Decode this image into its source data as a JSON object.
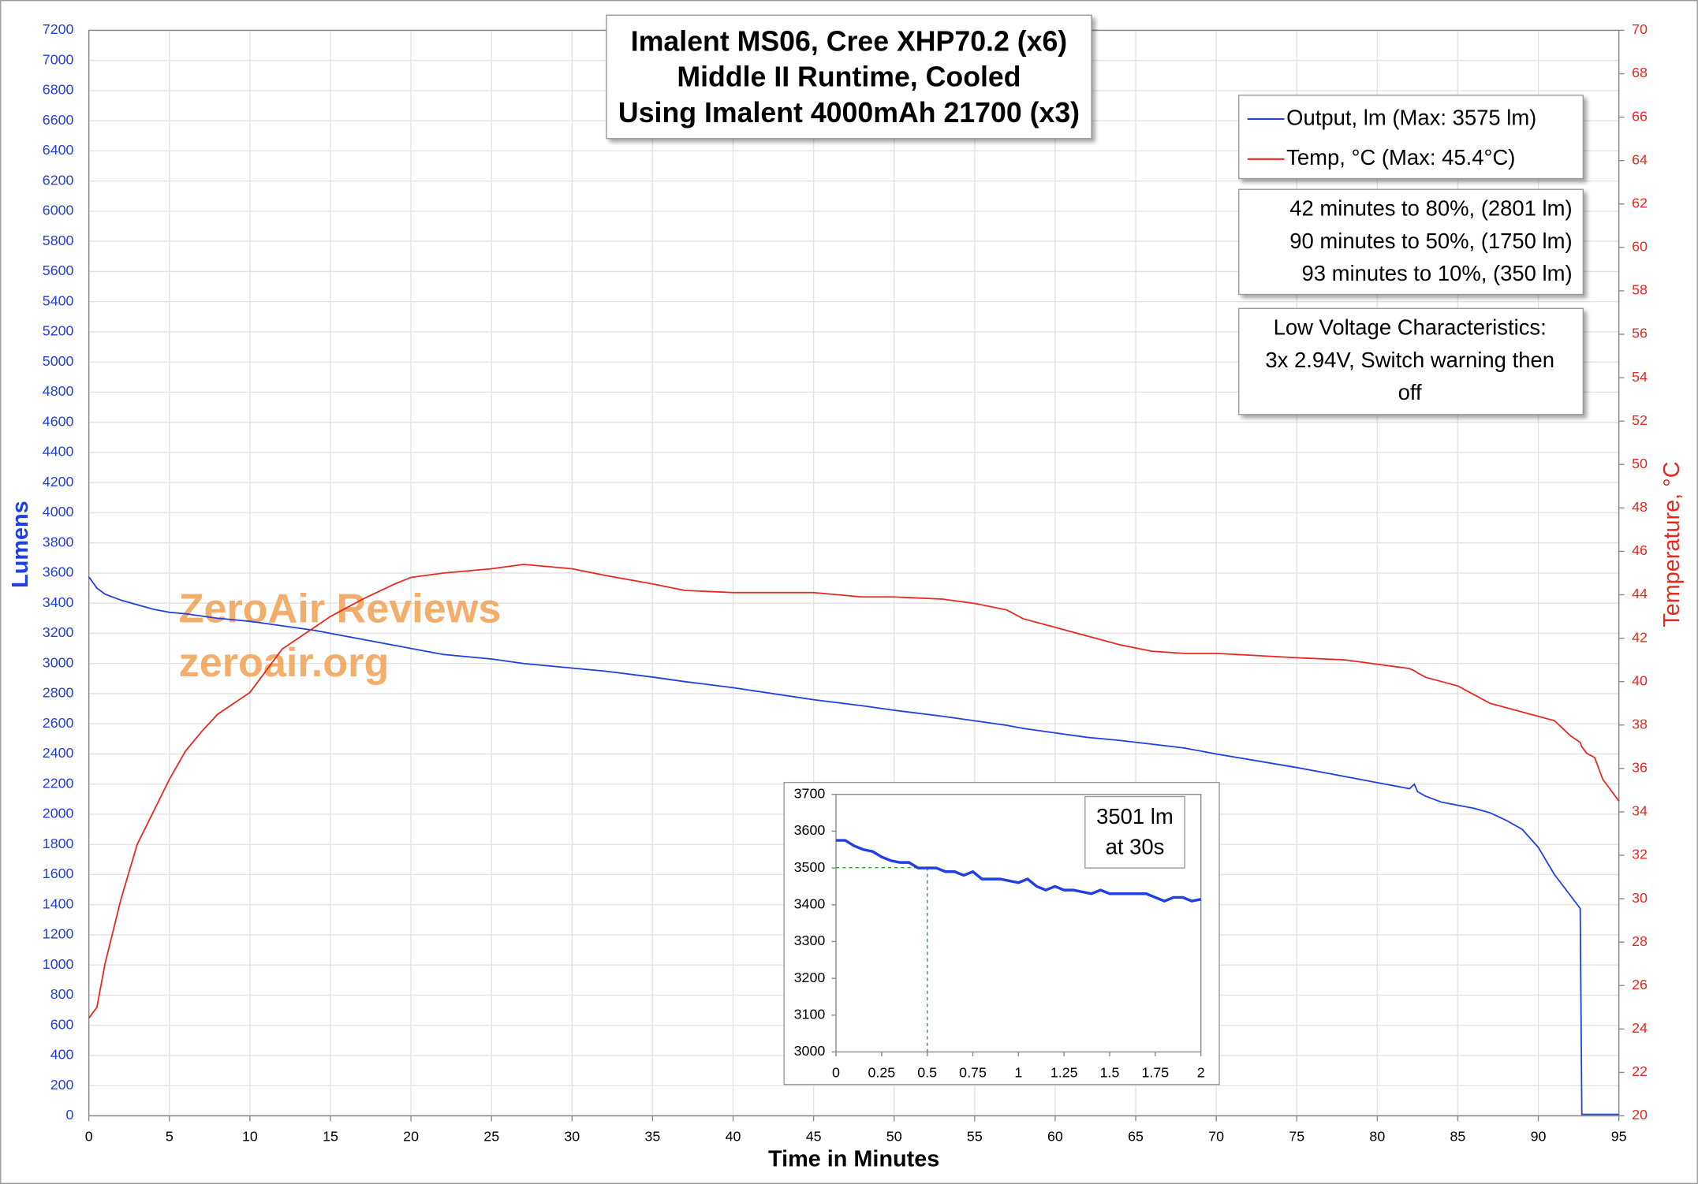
{
  "chart_data": [
    {
      "type": "line",
      "title": [
        "Imalent MS06, Cree XHP70.2 (x6)",
        "Middle II Runtime, Cooled",
        "Using Imalent 4000mAh 21700 (x3)"
      ],
      "xlabel": "Time in Minutes",
      "ylabel": "Lumens",
      "y2label": "Temperature, °C",
      "x": [
        0,
        0.5,
        1,
        2,
        3,
        4,
        5,
        6,
        7,
        8,
        9,
        10,
        11,
        12,
        13,
        14,
        15,
        17,
        19,
        20,
        22,
        25,
        27,
        30,
        32,
        35,
        37,
        40,
        45,
        48,
        50,
        53,
        55,
        57,
        58,
        60,
        62,
        64,
        66,
        68,
        70,
        75,
        78,
        80,
        82,
        82.3,
        82.5,
        83,
        84,
        85,
        86,
        87,
        88,
        89,
        90,
        91,
        92,
        92.6,
        92.7,
        93,
        93.5,
        94,
        94.5,
        95
      ],
      "series": [
        {
          "name": "Output, lm (Max: 3575 lm)",
          "color": "#1f3fe0",
          "axis": "y",
          "values": [
            3575,
            3500,
            3460,
            3420,
            3390,
            3360,
            3340,
            3330,
            3315,
            3300,
            3290,
            3280,
            3265,
            3250,
            3235,
            3220,
            3200,
            3160,
            3120,
            3100,
            3060,
            3030,
            3000,
            2970,
            2950,
            2910,
            2880,
            2840,
            2760,
            2720,
            2690,
            2650,
            2620,
            2590,
            2570,
            2540,
            2510,
            2490,
            2465,
            2440,
            2400,
            2310,
            2250,
            2210,
            2170,
            2200,
            2150,
            2120,
            2080,
            2060,
            2040,
            2010,
            1960,
            1900,
            1780,
            1600,
            1460,
            1375,
            10,
            10,
            10,
            10,
            10,
            10
          ]
        },
        {
          "name": "Temp, °C (Max: 45.4°C)",
          "color": "#e8281e",
          "axis": "y2",
          "values": [
            24.5,
            25,
            27,
            30,
            32.5,
            34,
            35.5,
            36.8,
            37.7,
            38.5,
            39,
            39.5,
            40.5,
            41.5,
            42,
            42.5,
            43,
            43.8,
            44.5,
            44.8,
            45,
            45.2,
            45.4,
            45.2,
            44.9,
            44.5,
            44.2,
            44.1,
            44.1,
            43.9,
            43.9,
            43.8,
            43.6,
            43.3,
            42.9,
            42.5,
            42.1,
            41.7,
            41.4,
            41.3,
            41.3,
            41.1,
            41,
            40.8,
            40.6,
            40.5,
            40.4,
            40.2,
            40,
            39.8,
            39.4,
            39,
            38.8,
            38.6,
            38.4,
            38.2,
            37.5,
            37.2,
            37,
            36.7,
            36.5,
            35.5,
            35,
            34.5
          ]
        }
      ],
      "xlim": [
        0,
        95
      ],
      "xticks": [
        0,
        5,
        10,
        15,
        20,
        25,
        30,
        35,
        40,
        45,
        50,
        55,
        60,
        65,
        70,
        75,
        80,
        85,
        90,
        95
      ],
      "ylim": [
        0,
        7200
      ],
      "yticks": [
        0,
        200,
        400,
        600,
        800,
        1000,
        1200,
        1400,
        1600,
        1800,
        2000,
        2200,
        2400,
        2600,
        2800,
        3000,
        3200,
        3400,
        3600,
        3800,
        4000,
        4200,
        4400,
        4600,
        4800,
        5000,
        5200,
        5400,
        5600,
        5800,
        6000,
        6200,
        6400,
        6600,
        6800,
        7000,
        7200
      ],
      "y2lim": [
        20,
        70
      ],
      "y2ticks": [
        20,
        22,
        24,
        26,
        28,
        30,
        32,
        34,
        36,
        38,
        40,
        42,
        44,
        46,
        48,
        50,
        52,
        54,
        56,
        58,
        60,
        62,
        64,
        66,
        68,
        70
      ],
      "grid": true,
      "annotations": [
        [
          "42 minutes to 80%, (2801 lm)",
          "90 minutes to 50%, (1750 lm)",
          "93 minutes to 10%, (350 lm)"
        ],
        [
          "Low Voltage Characteristics:",
          "3x 2.94V, Switch warning then",
          "off"
        ]
      ],
      "watermark": [
        "ZeroAir Reviews",
        "zeroair.org"
      ]
    },
    {
      "type": "line",
      "x": [
        0,
        0.05,
        0.1,
        0.15,
        0.2,
        0.25,
        0.3,
        0.35,
        0.4,
        0.45,
        0.5,
        0.55,
        0.6,
        0.65,
        0.7,
        0.75,
        0.8,
        0.9,
        1,
        1.05,
        1.1,
        1.15,
        1.2,
        1.25,
        1.3,
        1.4,
        1.45,
        1.5,
        1.6,
        1.7,
        1.75,
        1.8,
        1.85,
        1.9,
        1.95,
        2
      ],
      "series": [
        {
          "color": "#1f3fe0",
          "values": [
            3575,
            3575,
            3560,
            3550,
            3545,
            3530,
            3520,
            3515,
            3515,
            3500,
            3500,
            3500,
            3490,
            3490,
            3480,
            3490,
            3470,
            3470,
            3460,
            3470,
            3450,
            3440,
            3450,
            3440,
            3440,
            3430,
            3440,
            3430,
            3430,
            3430,
            3420,
            3410,
            3420,
            3420,
            3410,
            3415
          ]
        }
      ],
      "xlim": [
        0,
        2
      ],
      "xticks": [
        0,
        0.25,
        0.5,
        0.75,
        1,
        1.25,
        1.5,
        1.75,
        2
      ],
      "ylim": [
        3000,
        3700
      ],
      "yticks": [
        3000,
        3100,
        3200,
        3300,
        3400,
        3500,
        3600,
        3700
      ],
      "marker": {
        "x": 0.5,
        "y": 3501,
        "color": "#2ca02c"
      },
      "annotation": [
        "3501 lm",
        "at 30s"
      ]
    }
  ]
}
